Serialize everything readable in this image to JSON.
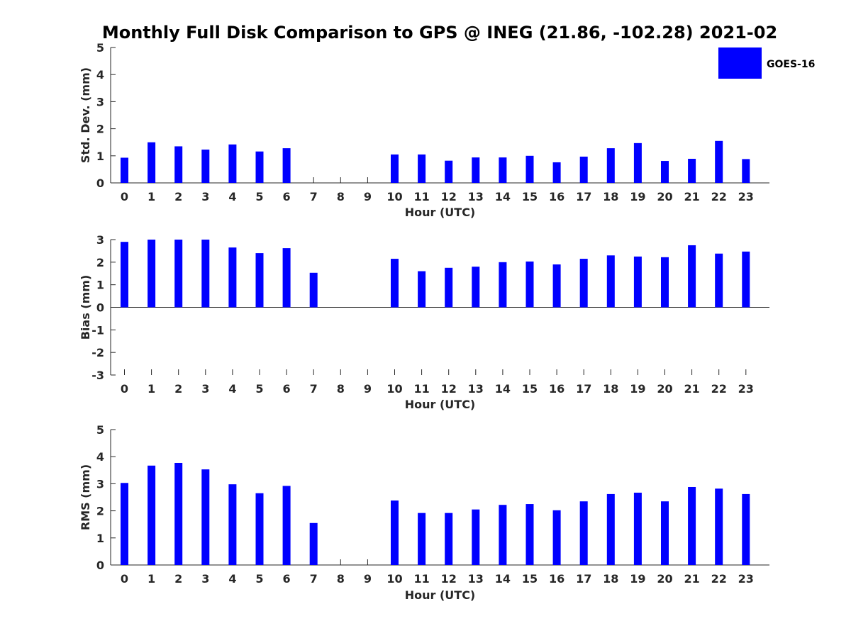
{
  "title": "Monthly Full Disk Comparison to GPS @ INEG (21.86, -102.28) 2021-02",
  "legend": {
    "label": "GOES-16",
    "color": "#0000ff",
    "placement": "top-right"
  },
  "bar_color": "#0000ff",
  "chart_data": [
    {
      "type": "bar",
      "categories": [
        "0",
        "1",
        "2",
        "3",
        "4",
        "5",
        "6",
        "7",
        "8",
        "9",
        "10",
        "11",
        "12",
        "13",
        "14",
        "15",
        "16",
        "17",
        "18",
        "19",
        "20",
        "21",
        "22",
        "23"
      ],
      "series": [
        {
          "name": "GOES-16",
          "values": [
            0.93,
            1.5,
            1.35,
            1.23,
            1.42,
            1.16,
            1.28,
            null,
            null,
            null,
            1.05,
            1.05,
            0.82,
            0.94,
            0.94,
            1.0,
            0.76,
            0.97,
            1.28,
            1.47,
            0.81,
            0.89,
            1.55,
            0.88
          ]
        }
      ],
      "xlabel": "Hour (UTC)",
      "ylabel": "Std. Dev. (mm)",
      "ylim": [
        0,
        5
      ],
      "yticks": [
        "0",
        "1",
        "2",
        "3",
        "4",
        "5"
      ],
      "grid": false
    },
    {
      "type": "bar",
      "categories": [
        "0",
        "1",
        "2",
        "3",
        "4",
        "5",
        "6",
        "7",
        "8",
        "9",
        "10",
        "11",
        "12",
        "13",
        "14",
        "15",
        "16",
        "17",
        "18",
        "19",
        "20",
        "21",
        "22",
        "23"
      ],
      "series": [
        {
          "name": "GOES-16",
          "values": [
            2.9,
            3.0,
            3.0,
            3.0,
            2.65,
            2.4,
            2.62,
            1.53,
            null,
            null,
            2.15,
            1.6,
            1.75,
            1.8,
            2.0,
            2.03,
            1.9,
            2.15,
            2.3,
            2.25,
            2.22,
            2.75,
            2.38,
            2.47
          ]
        }
      ],
      "xlabel": "Hour (UTC)",
      "ylabel": "Bias (mm)",
      "ylim": [
        -3,
        3
      ],
      "yticks": [
        "-3",
        "-2",
        "-1",
        "0",
        "1",
        "2",
        "3"
      ],
      "grid": false
    },
    {
      "type": "bar",
      "categories": [
        "0",
        "1",
        "2",
        "3",
        "4",
        "5",
        "6",
        "7",
        "8",
        "9",
        "10",
        "11",
        "12",
        "13",
        "14",
        "15",
        "16",
        "17",
        "18",
        "19",
        "20",
        "21",
        "22",
        "23"
      ],
      "series": [
        {
          "name": "GOES-16",
          "values": [
            3.03,
            3.67,
            3.77,
            3.53,
            2.98,
            2.65,
            2.92,
            1.55,
            null,
            null,
            2.38,
            1.92,
            1.92,
            2.05,
            2.22,
            2.25,
            2.02,
            2.35,
            2.62,
            2.67,
            2.35,
            2.88,
            2.82,
            2.62
          ]
        }
      ],
      "xlabel": "Hour (UTC)",
      "ylabel": "RMS (mm)",
      "ylim": [
        0,
        5
      ],
      "yticks": [
        "0",
        "1",
        "2",
        "3",
        "4",
        "5"
      ],
      "grid": false
    }
  ]
}
